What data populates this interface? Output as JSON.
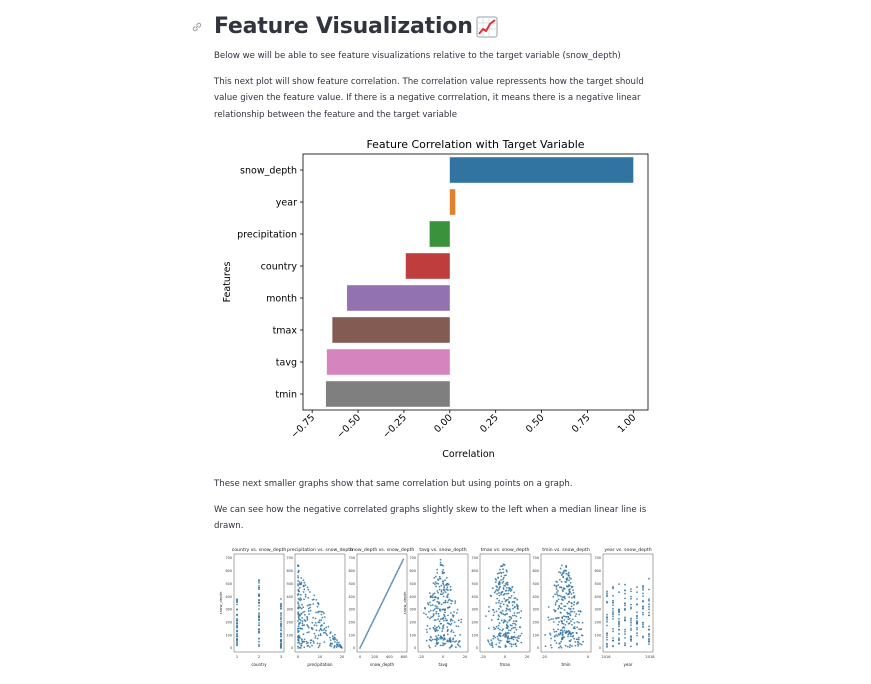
{
  "header": {
    "title": "Feature Visualization",
    "title_emoji": "chart-increasing-icon"
  },
  "intro_text": "Below we will be able to see feature visualizations relative to the target variable (snow_depth)",
  "corr_text": "This next plot will show feature correlation. The correlation value repressents how the target should value given the feature value. If there is a negative corrrelation, it means there is a negative linear relationship between the feature and the target variable",
  "scatter_intro": "These next smaller graphs show that same correlation but using points on a graph.",
  "scatter_note": "We can see how the negative correlated graphs slightly skew to the left when a median linear line is drawn.",
  "colors": {
    "text": "#31333f",
    "bar_colors": [
      "#3274a1",
      "#e1812c",
      "#3a923a",
      "#c03d3e",
      "#9372b2",
      "#845b53",
      "#d684bd",
      "#7f7f7f"
    ],
    "scatter_point": "#3274a1"
  },
  "chart_data": [
    {
      "type": "bar",
      "orientation": "horizontal",
      "title": "Feature Correlation with Target Variable",
      "xlabel": "Correlation",
      "ylabel": "Features",
      "categories": [
        "snow_depth",
        "year",
        "precipitation",
        "country",
        "month",
        "tmax",
        "tavg",
        "tmin"
      ],
      "values": [
        1.0,
        0.03,
        -0.11,
        -0.24,
        -0.56,
        -0.64,
        -0.67,
        -0.675
      ],
      "xlim": [
        -0.8,
        1.08
      ],
      "xticks": [
        "−0.75",
        "−0.50",
        "−0.25",
        "0.00",
        "0.25",
        "0.50",
        "0.75",
        "1.00"
      ],
      "xtick_values": [
        -0.75,
        -0.5,
        -0.25,
        0.0,
        0.25,
        0.5,
        0.75,
        1.0
      ],
      "grid": false,
      "legend": "none"
    },
    {
      "type": "scatter",
      "subplots": [
        {
          "title": "country vs. snow_depth",
          "xlabel": "country",
          "ylabel": "snow_depth",
          "xticks": [
            "1",
            "2",
            "3"
          ]
        },
        {
          "title": "precipitation vs. snow_depth",
          "xlabel": "precipitation",
          "ylabel": "",
          "xticks": [
            "0",
            "10",
            "20"
          ]
        },
        {
          "title": "snow_depth vs. snow_depth",
          "xlabel": "snow_depth",
          "ylabel": "",
          "xticks": [
            "0",
            "200",
            "400",
            "600"
          ]
        },
        {
          "title": "tavg vs. snow_depth",
          "xlabel": "tavg",
          "ylabel": "snow_depth",
          "xticks": [
            "-20",
            "0",
            "20"
          ]
        },
        {
          "title": "tmax vs. snow_depth",
          "xlabel": "tmax",
          "ylabel": "",
          "xticks": [
            "-20",
            "0",
            "20"
          ]
        },
        {
          "title": "tmin vs. snow_depth",
          "xlabel": "tmin",
          "ylabel": "",
          "xticks": [
            "-20",
            "0"
          ]
        },
        {
          "title": "year vs. snow_depth",
          "xlabel": "year",
          "ylabel": "",
          "xticks": [
            "2016",
            "2018"
          ]
        }
      ],
      "yticks": [
        "0",
        "100",
        "200",
        "300",
        "400",
        "500",
        "600",
        "700"
      ],
      "ylim": [
        0,
        700
      ]
    }
  ]
}
